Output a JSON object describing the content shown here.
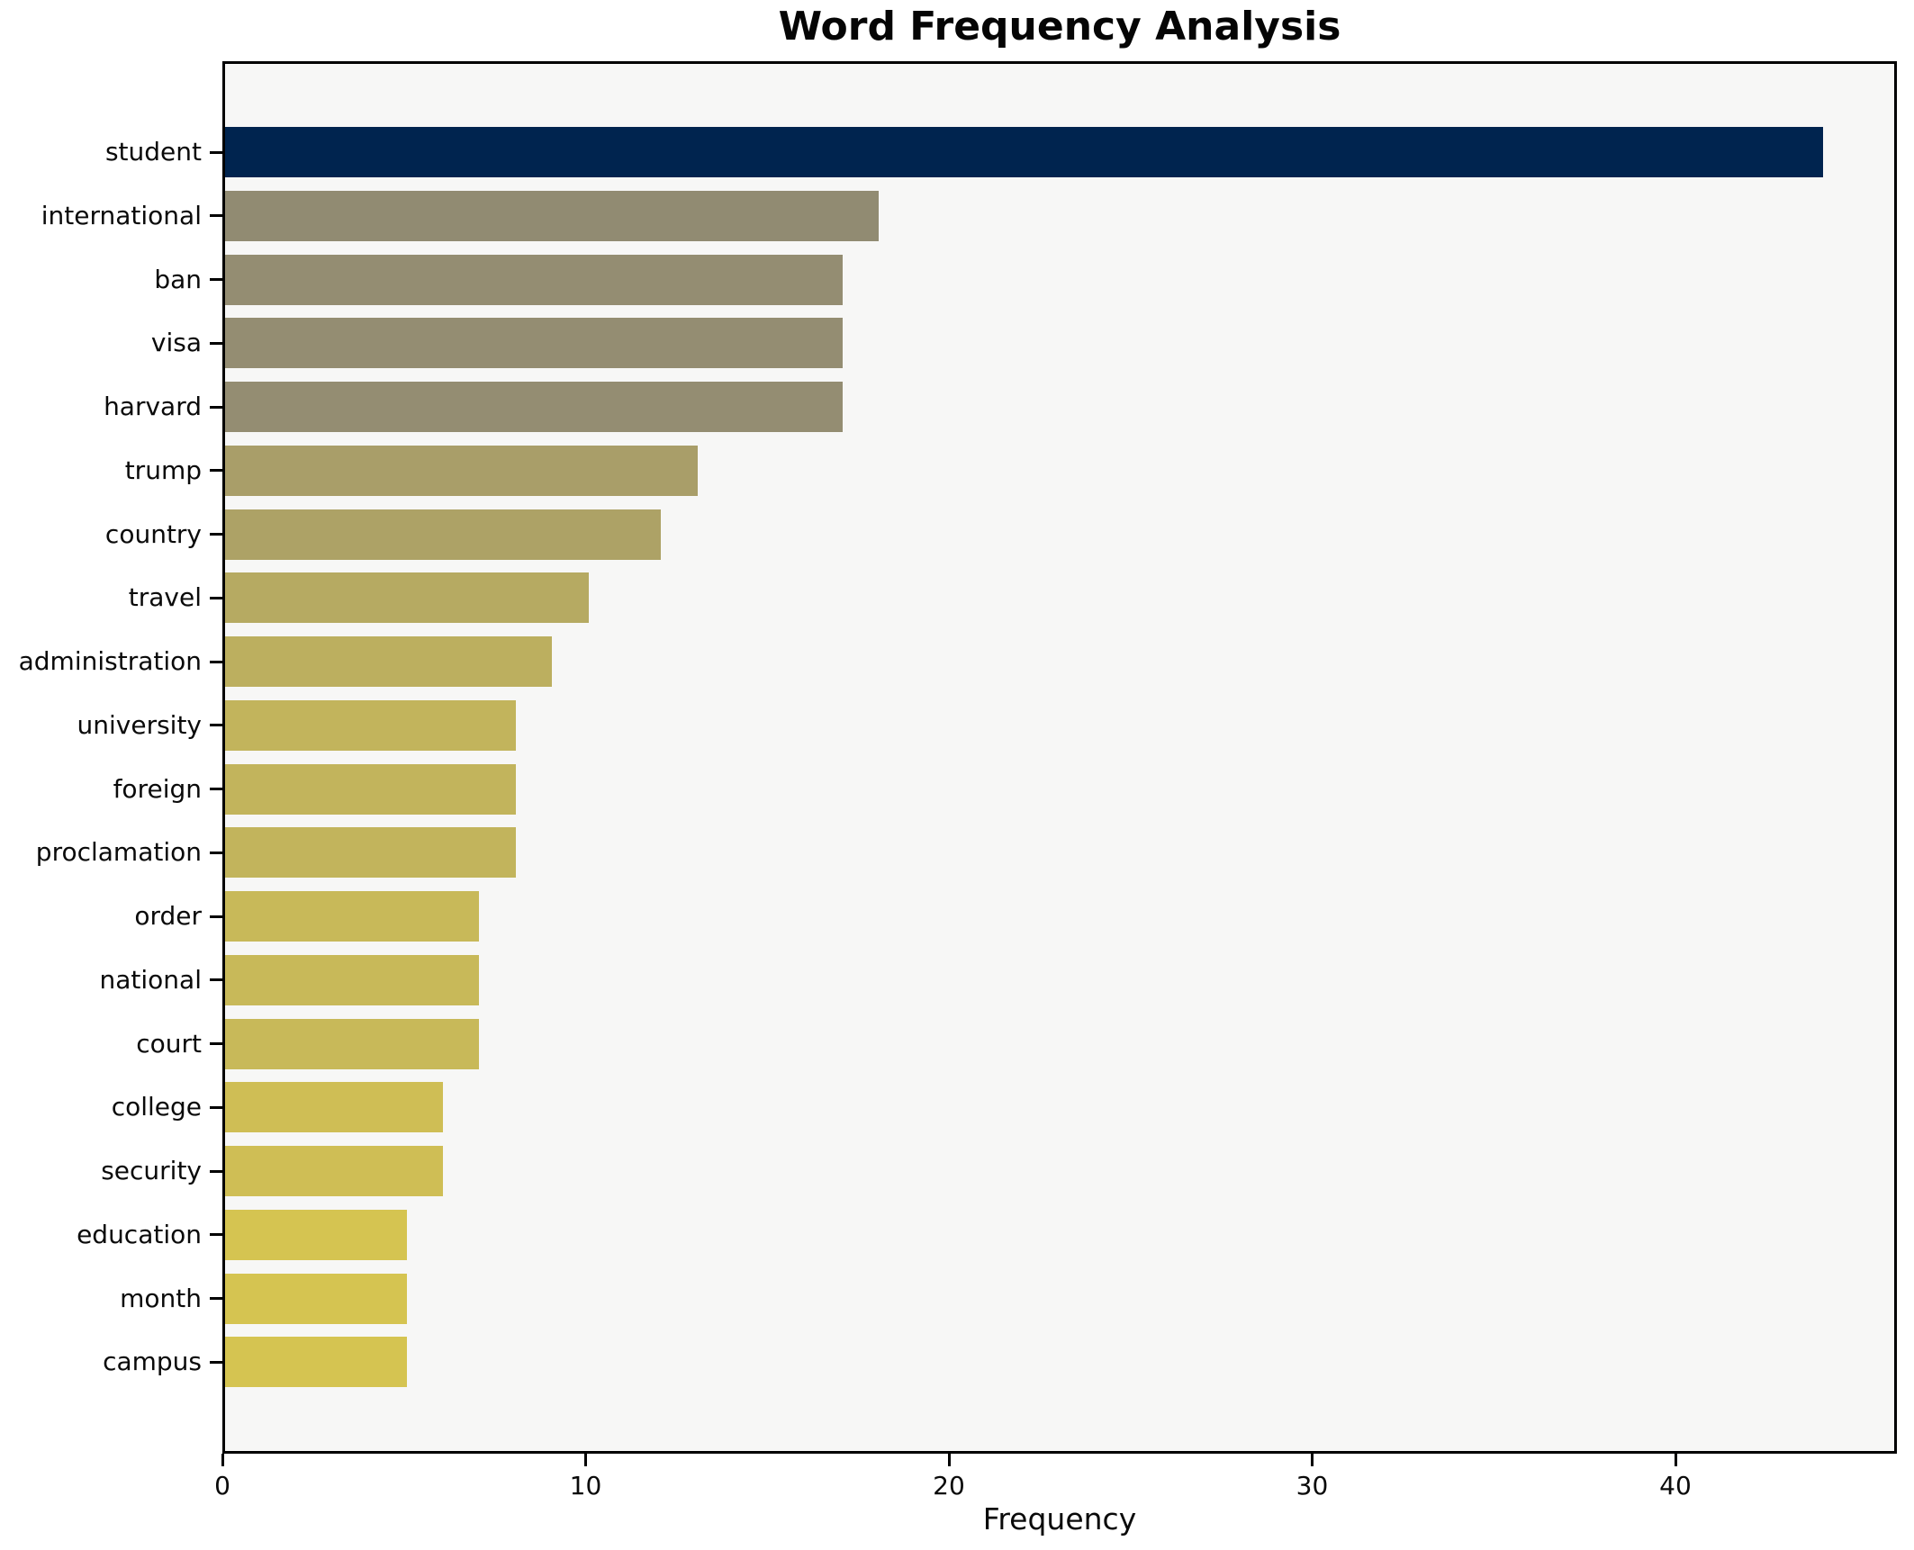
{
  "chart_data": {
    "type": "bar",
    "orientation": "horizontal",
    "title": "Word Frequency Analysis",
    "xlabel": "Frequency",
    "ylabel": "",
    "categories": [
      "student",
      "international",
      "ban",
      "visa",
      "harvard",
      "trump",
      "country",
      "travel",
      "administration",
      "university",
      "foreign",
      "proclamation",
      "order",
      "national",
      "court",
      "college",
      "security",
      "education",
      "month",
      "campus"
    ],
    "values": [
      44,
      18,
      17,
      17,
      17,
      13,
      12,
      10,
      9,
      8,
      8,
      8,
      7,
      7,
      7,
      6,
      6,
      5,
      5,
      5
    ],
    "bar_colors": [
      "#00244f",
      "#918b72",
      "#948d72",
      "#948d72",
      "#948d72",
      "#a99e69",
      "#ada266",
      "#b6aa62",
      "#bcaf5f",
      "#c2b45c",
      "#c2b45c",
      "#c2b45c",
      "#c8b959",
      "#c8b959",
      "#c8b959",
      "#cfbe55",
      "#cfbe55",
      "#d5c451",
      "#d5c451",
      "#d5c451"
    ],
    "x_ticks": [
      0,
      10,
      20,
      30,
      40
    ],
    "xlim": [
      0,
      46.1
    ],
    "grid": false,
    "legend": null,
    "plot_background": "#f7f7f6",
    "figure_background": "#ffffff",
    "spine_color": "#000000",
    "text_color": "#0a0a0a"
  }
}
